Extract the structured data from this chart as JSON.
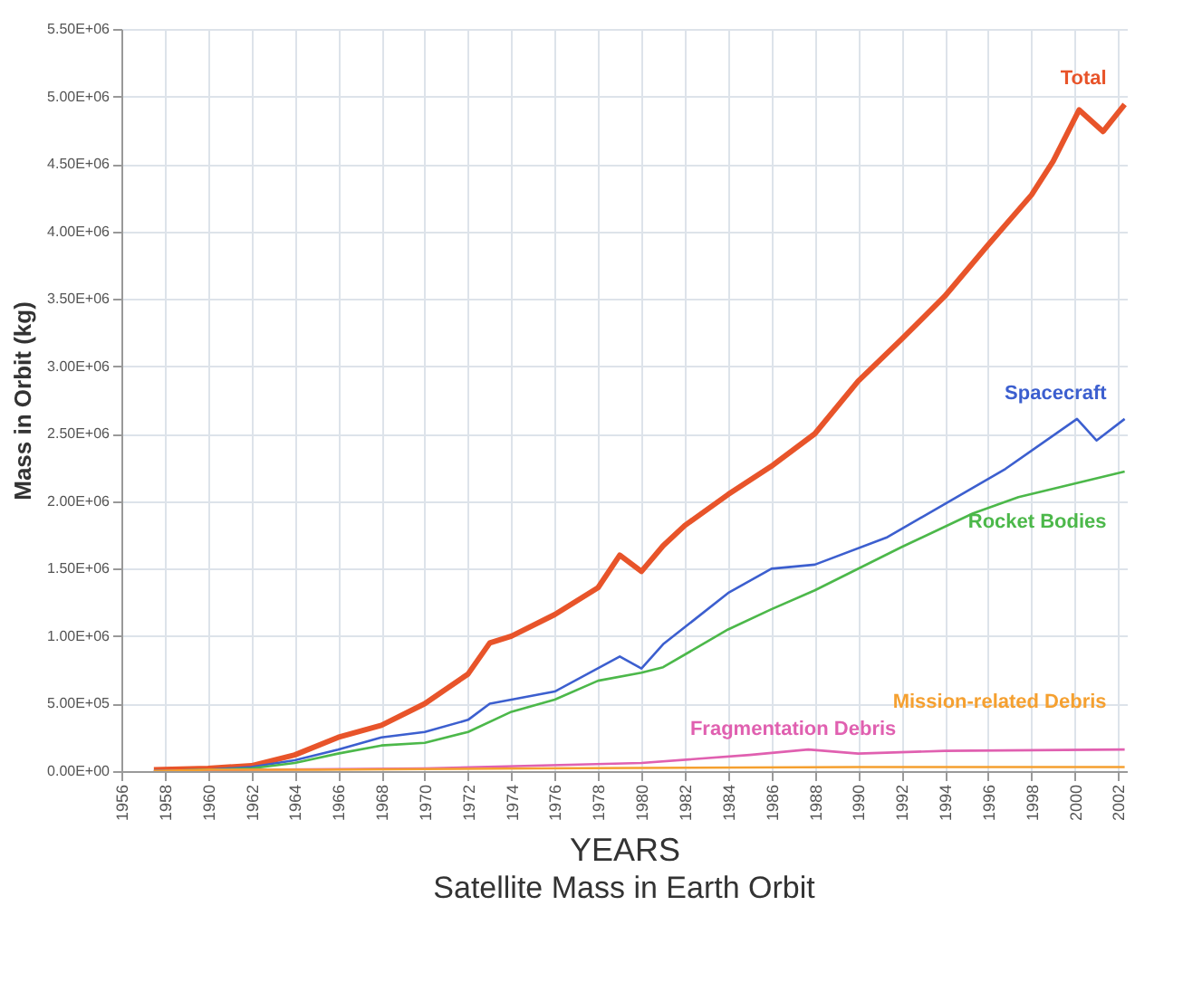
{
  "chart_data": {
    "type": "line",
    "title": "Satellite Mass in Earth Orbit",
    "xlabel": "YEARS",
    "ylabel": "Mass in Orbit (kg)",
    "xlim": [
      1956,
      2002.4
    ],
    "xticks": [
      1956,
      1958,
      1960,
      1962,
      1964,
      1966,
      1968,
      1970,
      1972,
      1974,
      1976,
      1978,
      1980,
      1982,
      1984,
      1986,
      1988,
      1990,
      1992,
      1994,
      1996,
      1998,
      2000,
      2002
    ],
    "ylim": [
      0,
      5500000
    ],
    "yticks": [
      {
        "value": 0,
        "label": "0.00E+00"
      },
      {
        "value": 500000,
        "label": "5.00E+05"
      },
      {
        "value": 1000000,
        "label": "1.00E+06"
      },
      {
        "value": 1500000,
        "label": "1.50E+06"
      },
      {
        "value": 2000000,
        "label": "2.00E+06"
      },
      {
        "value": 2500000,
        "label": "2.50E+06"
      },
      {
        "value": 3000000,
        "label": "3.00E+06"
      },
      {
        "value": 3500000,
        "label": "3.50E+06"
      },
      {
        "value": 4000000,
        "label": "4.00E+06"
      },
      {
        "value": 4500000,
        "label": "4.50E+06"
      },
      {
        "value": 5000000,
        "label": "5.00E+06"
      },
      {
        "value": 5500000,
        "label": "5.50E+06"
      }
    ],
    "grid": true,
    "marker": "none",
    "line_style": "solid",
    "series": [
      {
        "name": "Total",
        "color": "#e8542a",
        "x": [
          1957.5,
          1960,
          1962,
          1964,
          1966,
          1968,
          1970,
          1972,
          1973,
          1974,
          1976,
          1978,
          1979,
          1980,
          1981,
          1982,
          1984,
          1986,
          1988,
          1990,
          1992,
          1994,
          1996,
          1998,
          1999,
          2000.2,
          2001.3,
          2002.3
        ],
        "values": [
          10000,
          20000,
          40000,
          120000,
          250000,
          340000,
          500000,
          720000,
          950000,
          1000000,
          1160000,
          1360000,
          1600000,
          1480000,
          1670000,
          1820000,
          2050000,
          2260000,
          2500000,
          2890000,
          3200000,
          3520000,
          3900000,
          4270000,
          4520000,
          4900000,
          4740000,
          4940000
        ]
      },
      {
        "name": "Spacecraft",
        "color": "#3c5fcf",
        "x": [
          1957.5,
          1960,
          1962,
          1964,
          1966,
          1968,
          1970,
          1972,
          1973,
          1976,
          1979,
          1980,
          1981,
          1984,
          1986,
          1988,
          1991.3,
          1994,
          1996.8,
          2000.1,
          2001,
          2002.3
        ],
        "values": [
          0,
          10000,
          30000,
          80000,
          160000,
          250000,
          290000,
          380000,
          500000,
          590000,
          850000,
          760000,
          940000,
          1320000,
          1500000,
          1530000,
          1730000,
          1980000,
          2240000,
          2610000,
          2450000,
          2610000
        ]
      },
      {
        "name": "Rocket Bodies",
        "color": "#4cb84a",
        "x": [
          1957.5,
          1960,
          1962,
          1964,
          1966,
          1968,
          1970,
          1972,
          1974,
          1976,
          1978,
          1980,
          1981,
          1984,
          1986,
          1988,
          1992,
          1995.3,
          1997.4,
          2002.3
        ],
        "values": [
          0,
          10000,
          20000,
          60000,
          130000,
          190000,
          210000,
          290000,
          440000,
          530000,
          670000,
          730000,
          770000,
          1050000,
          1200000,
          1340000,
          1660000,
          1910000,
          2030000,
          2220000
        ]
      },
      {
        "name": "Fragmentation Debris",
        "color": "#e060b0",
        "x": [
          1957.5,
          1962,
          1970,
          1975,
          1980,
          1985,
          1987.7,
          1990,
          1994,
          2002.3
        ],
        "values": [
          0,
          10000,
          20000,
          40000,
          60000,
          120000,
          160000,
          130000,
          150000,
          160000
        ]
      },
      {
        "name": "Mission-related Debris",
        "color": "#f5a030",
        "x": [
          1957.5,
          1960,
          1965,
          1975,
          1990,
          2002.3
        ],
        "values": [
          0,
          10000,
          10000,
          20000,
          30000,
          30000
        ]
      }
    ]
  }
}
